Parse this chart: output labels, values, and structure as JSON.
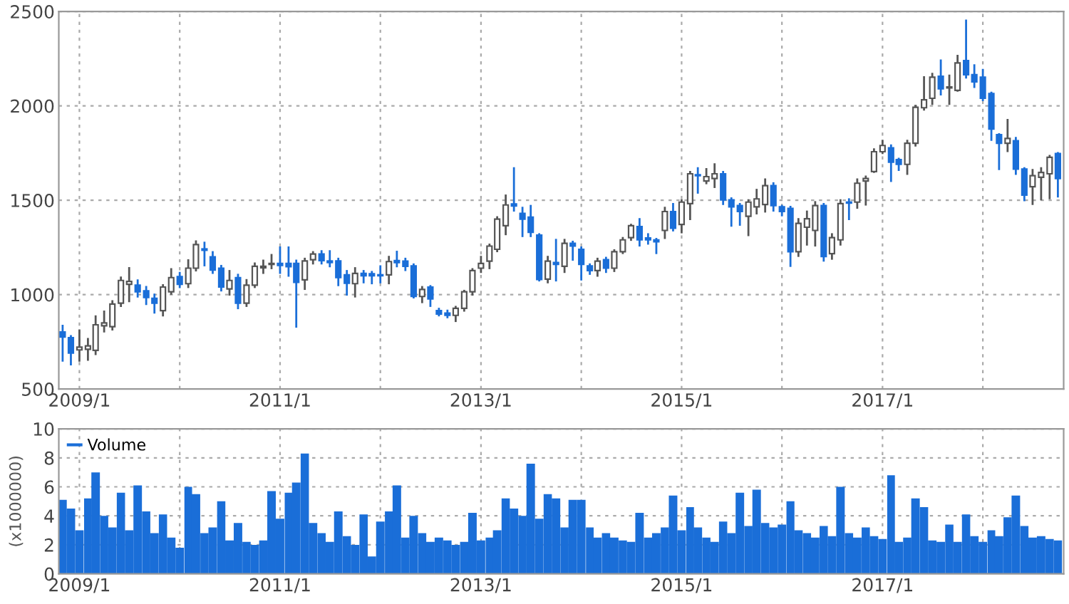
{
  "chart_data": [
    {
      "type": "candlestick",
      "grid": true,
      "colors": [
        "#1a6ed8",
        "#1a6ed8",
        "#ffffff",
        "#ffffff",
        "#ffffff",
        "#ffffff",
        "#ffffff",
        "#ffffff",
        "#ffffff",
        "#1a6ed8",
        "#1a6ed8",
        "#1a6ed8",
        "#ffffff",
        "#ffffff",
        "#1a6ed8",
        "#ffffff",
        "#ffffff",
        "#1a6ed8",
        "#1a6ed8",
        "#1a6ed8",
        "#ffffff",
        "#1a6ed8",
        "#ffffff",
        "#ffffff",
        "#ffffff",
        "#ffffff",
        "#1a6ed8",
        "#1a6ed8",
        "#1a6ed8",
        "#ffffff",
        "#ffffff",
        "#1a6ed8",
        "#1a6ed8",
        "#1a6ed8",
        "#1a6ed8",
        "#ffffff",
        "#1a6ed8",
        "#1a6ed8",
        "#1a6ed8",
        "#ffffff",
        "#1a6ed8",
        "#1a6ed8",
        "#1a6ed8",
        "#ffffff",
        "#1a6ed8",
        "#1a6ed8",
        "#1a6ed8",
        "#ffffff",
        "#ffffff",
        "#ffffff",
        "#ffffff",
        "#ffffff",
        "#ffffff",
        "#ffffff",
        "#1a6ed8",
        "#1a6ed8",
        "#1a6ed8",
        "#1a6ed8",
        "#ffffff",
        "#1a6ed8",
        "#ffffff",
        "#1a6ed8",
        "#1a6ed8",
        "#1a6ed8",
        "#ffffff",
        "#1a6ed8",
        "#ffffff",
        "#ffffff",
        "#ffffff",
        "#1a6ed8",
        "#1a6ed8",
        "#1a6ed8",
        "#ffffff",
        "#1a6ed8",
        "#ffffff",
        "#ffffff",
        "#1a6ed8",
        "#ffffff",
        "#ffffff",
        "#1a6ed8",
        "#1a6ed8",
        "#1a6ed8",
        "#ffffff",
        "#ffffff",
        "#ffffff",
        "#1a6ed8",
        "#1a6ed8",
        "#1a6ed8",
        "#ffffff",
        "#ffffff",
        "#ffffff",
        "#1a6ed8",
        "#ffffff",
        "#ffffff",
        "#1a6ed8",
        "#ffffff",
        "#ffffff",
        "#ffffff",
        "#ffffff",
        "#1a6ed8",
        "#1a6ed8",
        "#ffffff",
        "#ffffff",
        "#ffffff",
        "#ffffff",
        "#1a6ed8",
        "#ffffff",
        "#ffffff",
        "#1a6ed8",
        "#1a6ed8",
        "#1a6ed8",
        "#1a6ed8",
        "#1a6ed8",
        "#ffffff",
        "#1a6ed8",
        "#1a6ed8",
        "#ffffff",
        "#ffffff",
        "#ffffff",
        "#1a6ed8"
      ],
      "xlim": [
        "2008-10-18",
        "2018-10-22"
      ],
      "xticks": [
        {
          "value": "2009-01",
          "label": "2009/1"
        },
        {
          "value": "2010-01",
          "label": null
        },
        {
          "value": "2011-01",
          "label": "2011/1"
        },
        {
          "value": "2012-01",
          "label": null
        },
        {
          "value": "2013-01",
          "label": "2013/1"
        },
        {
          "value": "2014-01",
          "label": null
        },
        {
          "value": "2015-01",
          "label": "2015/1"
        },
        {
          "value": "2016-01",
          "label": null
        },
        {
          "value": "2017-01",
          "label": "2017/1"
        },
        {
          "value": "2018-01",
          "label": null
        }
      ],
      "ylim": [
        500,
        2500
      ],
      "yticks": [
        500,
        1000,
        1500,
        2000,
        2500
      ],
      "x": [
        "2008-11",
        "2008-12",
        "2009-01",
        "2009-02",
        "2009-03",
        "2009-04",
        "2009-05",
        "2009-06",
        "2009-07",
        "2009-08",
        "2009-09",
        "2009-10",
        "2009-11",
        "2009-12",
        "2010-01",
        "2010-02",
        "2010-03",
        "2010-04",
        "2010-05",
        "2010-06",
        "2010-07",
        "2010-08",
        "2010-09",
        "2010-10",
        "2010-11",
        "2010-12",
        "2011-01",
        "2011-02",
        "2011-03",
        "2011-04",
        "2011-05",
        "2011-06",
        "2011-07",
        "2011-08",
        "2011-09",
        "2011-10",
        "2011-11",
        "2011-12",
        "2012-01",
        "2012-02",
        "2012-03",
        "2012-04",
        "2012-05",
        "2012-06",
        "2012-07",
        "2012-08",
        "2012-09",
        "2012-10",
        "2012-11",
        "2012-12",
        "2013-01",
        "2013-02",
        "2013-03",
        "2013-04",
        "2013-05",
        "2013-06",
        "2013-07",
        "2013-08",
        "2013-09",
        "2013-10",
        "2013-11",
        "2013-12",
        "2014-01",
        "2014-02",
        "2014-03",
        "2014-04",
        "2014-05",
        "2014-06",
        "2014-07",
        "2014-08",
        "2014-09",
        "2014-10",
        "2014-11",
        "2014-12",
        "2015-01",
        "2015-02",
        "2015-03",
        "2015-04",
        "2015-05",
        "2015-06",
        "2015-07",
        "2015-08",
        "2015-09",
        "2015-10",
        "2015-11",
        "2015-12",
        "2016-01",
        "2016-02",
        "2016-03",
        "2016-04",
        "2016-05",
        "2016-06",
        "2016-07",
        "2016-08",
        "2016-09",
        "2016-10",
        "2016-11",
        "2016-12",
        "2017-01",
        "2017-02",
        "2017-03",
        "2017-04",
        "2017-05",
        "2017-06",
        "2017-07",
        "2017-08",
        "2017-09",
        "2017-10",
        "2017-11",
        "2017-12",
        "2018-01",
        "2018-02",
        "2018-03",
        "2018-04",
        "2018-05",
        "2018-06",
        "2018-07",
        "2018-08",
        "2018-09",
        "2018-10"
      ],
      "ohlc": [
        [
          802,
          835,
          650,
          775
        ],
        [
          772,
          780,
          630,
          690
        ],
        [
          707,
          810,
          650,
          722
        ],
        [
          710,
          765,
          655,
          728
        ],
        [
          705,
          885,
          685,
          840
        ],
        [
          835,
          910,
          805,
          850
        ],
        [
          830,
          965,
          815,
          950
        ],
        [
          955,
          1090,
          940,
          1075
        ],
        [
          1055,
          1140,
          965,
          1070
        ],
        [
          1050,
          1075,
          990,
          1015
        ],
        [
          1020,
          1040,
          950,
          985
        ],
        [
          980,
          1000,
          905,
          955
        ],
        [
          915,
          1050,
          890,
          1040
        ],
        [
          1015,
          1135,
          1005,
          1090
        ],
        [
          1095,
          1115,
          1040,
          1055
        ],
        [
          1058,
          1182,
          1040,
          1140
        ],
        [
          1140,
          1282,
          1128,
          1265
        ],
        [
          1242,
          1275,
          1155,
          1235
        ],
        [
          1200,
          1225,
          1115,
          1130
        ],
        [
          1140,
          1152,
          1022,
          1040
        ],
        [
          1030,
          1125,
          1000,
          1075
        ],
        [
          1090,
          1105,
          928,
          955
        ],
        [
          955,
          1077,
          940,
          1050
        ],
        [
          1050,
          1165,
          1040,
          1150
        ],
        [
          1142,
          1180,
          1115,
          1150
        ],
        [
          1160,
          1210,
          1140,
          1165
        ],
        [
          1165,
          1250,
          1115,
          1155
        ],
        [
          1165,
          1250,
          1100,
          1148
        ],
        [
          1165,
          1180,
          830,
          1065
        ],
        [
          1078,
          1190,
          1030,
          1178
        ],
        [
          1185,
          1225,
          1165,
          1215
        ],
        [
          1215,
          1230,
          1165,
          1180
        ],
        [
          1178,
          1230,
          1150,
          1170
        ],
        [
          1178,
          1190,
          1050,
          1090
        ],
        [
          1105,
          1125,
          1000,
          1060
        ],
        [
          1058,
          1140,
          990,
          1112
        ],
        [
          1112,
          1125,
          1065,
          1100
        ],
        [
          1110,
          1120,
          1060,
          1100
        ],
        [
          1105,
          1150,
          1065,
          1100
        ],
        [
          1105,
          1200,
          1060,
          1175
        ],
        [
          1180,
          1227,
          1150,
          1170
        ],
        [
          1177,
          1190,
          1130,
          1150
        ],
        [
          1152,
          1160,
          985,
          990
        ],
        [
          990,
          1040,
          960,
          1027
        ],
        [
          1040,
          1045,
          940,
          977
        ],
        [
          915,
          925,
          890,
          897
        ],
        [
          902,
          915,
          880,
          890
        ],
        [
          890,
          935,
          860,
          927
        ],
        [
          927,
          1020,
          915,
          1015
        ],
        [
          1015,
          1135,
          1000,
          1127
        ],
        [
          1140,
          1200,
          1120,
          1165
        ],
        [
          1177,
          1265,
          1140,
          1257
        ],
        [
          1240,
          1410,
          1230,
          1400
        ],
        [
          1365,
          1525,
          1320,
          1475
        ],
        [
          1480,
          1670,
          1445,
          1470
        ],
        [
          1430,
          1460,
          1310,
          1400
        ],
        [
          1410,
          1470,
          1310,
          1330
        ],
        [
          1315,
          1320,
          1075,
          1080
        ],
        [
          1082,
          1200,
          1065,
          1177
        ],
        [
          1170,
          1290,
          1075,
          1160
        ],
        [
          1150,
          1290,
          1120,
          1272
        ],
        [
          1272,
          1280,
          1185,
          1257
        ],
        [
          1240,
          1250,
          1080,
          1160
        ],
        [
          1152,
          1160,
          1110,
          1127
        ],
        [
          1127,
          1190,
          1100,
          1177
        ],
        [
          1185,
          1195,
          1120,
          1140
        ],
        [
          1140,
          1235,
          1125,
          1227
        ],
        [
          1227,
          1300,
          1220,
          1290
        ],
        [
          1302,
          1370,
          1290,
          1365
        ],
        [
          1360,
          1400,
          1260,
          1290
        ],
        [
          1300,
          1320,
          1270,
          1290
        ],
        [
          1290,
          1295,
          1220,
          1280
        ],
        [
          1340,
          1460,
          1300,
          1440
        ],
        [
          1440,
          1480,
          1340,
          1352
        ],
        [
          1372,
          1500,
          1330,
          1490
        ],
        [
          1482,
          1650,
          1400,
          1640
        ],
        [
          1635,
          1670,
          1540,
          1630
        ],
        [
          1602,
          1665,
          1590,
          1625
        ],
        [
          1615,
          1690,
          1570,
          1640
        ],
        [
          1640,
          1650,
          1480,
          1502
        ],
        [
          1502,
          1510,
          1365,
          1465
        ],
        [
          1472,
          1480,
          1370,
          1440
        ],
        [
          1415,
          1500,
          1315,
          1490
        ],
        [
          1465,
          1555,
          1430,
          1507
        ],
        [
          1477,
          1610,
          1440,
          1577
        ],
        [
          1577,
          1590,
          1445,
          1472
        ],
        [
          1465,
          1470,
          1420,
          1440
        ],
        [
          1457,
          1465,
          1152,
          1227
        ],
        [
          1227,
          1400,
          1205,
          1377
        ],
        [
          1357,
          1440,
          1265,
          1402
        ],
        [
          1340,
          1490,
          1260,
          1472
        ],
        [
          1472,
          1480,
          1180,
          1202
        ],
        [
          1217,
          1320,
          1190,
          1302
        ],
        [
          1290,
          1500,
          1265,
          1482
        ],
        [
          1490,
          1505,
          1400,
          1485
        ],
        [
          1490,
          1610,
          1460,
          1590
        ],
        [
          1602,
          1625,
          1477,
          1615
        ],
        [
          1652,
          1770,
          1650,
          1757
        ],
        [
          1757,
          1815,
          1750,
          1790
        ],
        [
          1777,
          1790,
          1602,
          1702
        ],
        [
          1715,
          1720,
          1660,
          1690
        ],
        [
          1690,
          1815,
          1640,
          1802
        ],
        [
          1802,
          2000,
          1790,
          1992
        ],
        [
          1990,
          2152,
          1980,
          2032
        ],
        [
          2040,
          2170,
          2010,
          2152
        ],
        [
          2157,
          2240,
          2060,
          2090
        ],
        [
          2095,
          2160,
          2010,
          2100
        ],
        [
          2082,
          2265,
          2080,
          2227
        ],
        [
          2240,
          2452,
          2150,
          2165
        ],
        [
          2165,
          2215,
          2100,
          2127
        ],
        [
          2152,
          2190,
          2030,
          2040
        ],
        [
          2065,
          2070,
          1820,
          1877
        ],
        [
          1847,
          1850,
          1665,
          1802
        ],
        [
          1802,
          1925,
          1760,
          1827
        ],
        [
          1815,
          1830,
          1640,
          1665
        ],
        [
          1665,
          1670,
          1500,
          1527
        ],
        [
          1572,
          1660,
          1480,
          1630
        ],
        [
          1622,
          1670,
          1505,
          1647
        ],
        [
          1640,
          1735,
          1510,
          1727
        ],
        [
          1747,
          1750,
          1520,
          1615
        ]
      ]
    },
    {
      "type": "bar",
      "grid": true,
      "legend": "top left",
      "ylabel": "(x1000000)",
      "xlim": [
        "2008-10-18",
        "2018-10-22"
      ],
      "xticks": [
        {
          "value": "2009-01",
          "label": "2009/1"
        },
        {
          "value": "2010-01",
          "label": null
        },
        {
          "value": "2011-01",
          "label": "2011/1"
        },
        {
          "value": "2012-01",
          "label": null
        },
        {
          "value": "2013-01",
          "label": "2013/1"
        },
        {
          "value": "2014-01",
          "label": null
        },
        {
          "value": "2015-01",
          "label": "2015/1"
        },
        {
          "value": "2016-01",
          "label": null
        },
        {
          "value": "2017-01",
          "label": "2017/1"
        },
        {
          "value": "2018-01",
          "label": null
        }
      ],
      "ylim": [
        0,
        10
      ],
      "yticks": [
        0,
        2,
        4,
        6,
        8,
        10
      ],
      "x": [
        "2008-11",
        "2008-12",
        "2009-01",
        "2009-02",
        "2009-03",
        "2009-04",
        "2009-05",
        "2009-06",
        "2009-07",
        "2009-08",
        "2009-09",
        "2009-10",
        "2009-11",
        "2009-12",
        "2010-01",
        "2010-02",
        "2010-03",
        "2010-04",
        "2010-05",
        "2010-06",
        "2010-07",
        "2010-08",
        "2010-09",
        "2010-10",
        "2010-11",
        "2010-12",
        "2011-01",
        "2011-02",
        "2011-03",
        "2011-04",
        "2011-05",
        "2011-06",
        "2011-07",
        "2011-08",
        "2011-09",
        "2011-10",
        "2011-11",
        "2011-12",
        "2012-01",
        "2012-02",
        "2012-03",
        "2012-04",
        "2012-05",
        "2012-06",
        "2012-07",
        "2012-08",
        "2012-09",
        "2012-10",
        "2012-11",
        "2012-12",
        "2013-01",
        "2013-02",
        "2013-03",
        "2013-04",
        "2013-05",
        "2013-06",
        "2013-07",
        "2013-08",
        "2013-09",
        "2013-10",
        "2013-11",
        "2013-12",
        "2014-01",
        "2014-02",
        "2014-03",
        "2014-04",
        "2014-05",
        "2014-06",
        "2014-07",
        "2014-08",
        "2014-09",
        "2014-10",
        "2014-11",
        "2014-12",
        "2015-01",
        "2015-02",
        "2015-03",
        "2015-04",
        "2015-05",
        "2015-06",
        "2015-07",
        "2015-08",
        "2015-09",
        "2015-10",
        "2015-11",
        "2015-12",
        "2016-01",
        "2016-02",
        "2016-03",
        "2016-04",
        "2016-05",
        "2016-06",
        "2016-07",
        "2016-08",
        "2016-09",
        "2016-10",
        "2016-11",
        "2016-12",
        "2017-01",
        "2017-02",
        "2017-03",
        "2017-04",
        "2017-05",
        "2017-06",
        "2017-07",
        "2017-08",
        "2017-09",
        "2017-10",
        "2017-11",
        "2017-12",
        "2018-01",
        "2018-02",
        "2018-03",
        "2018-04",
        "2018-05",
        "2018-06",
        "2018-07",
        "2018-08",
        "2018-09",
        "2018-10"
      ],
      "series": [
        {
          "name": "Volume",
          "color": "#1a6ed8",
          "values": [
            5.1,
            4.5,
            3.0,
            5.2,
            7.0,
            4.0,
            3.2,
            5.6,
            3.0,
            6.1,
            4.3,
            2.8,
            4.1,
            2.5,
            1.8,
            6.0,
            5.5,
            2.8,
            3.2,
            5.0,
            2.3,
            3.5,
            2.2,
            2.0,
            2.3,
            5.7,
            3.8,
            5.6,
            6.3,
            8.3,
            3.5,
            2.8,
            2.2,
            4.3,
            2.6,
            2.0,
            4.1,
            1.2,
            3.6,
            4.3,
            6.1,
            2.5,
            4.0,
            2.8,
            2.2,
            2.5,
            2.3,
            2.0,
            2.2,
            4.2,
            2.3,
            2.5,
            3.0,
            5.2,
            4.5,
            4.0,
            7.6,
            3.8,
            5.5,
            5.2,
            3.2,
            5.1,
            5.1,
            3.2,
            2.5,
            2.8,
            2.5,
            2.3,
            2.2,
            4.2,
            2.5,
            2.8,
            3.2,
            5.4,
            3.0,
            4.6,
            3.2,
            2.5,
            2.2,
            3.6,
            2.8,
            5.6,
            3.3,
            5.8,
            3.5,
            3.2,
            3.4,
            5.0,
            3.0,
            2.8,
            2.5,
            3.3,
            2.6,
            6.0,
            2.8,
            2.5,
            3.2,
            2.6,
            2.4,
            6.8,
            2.2,
            2.5,
            5.2,
            4.6,
            2.3,
            2.2,
            3.4,
            2.2,
            4.1,
            2.6,
            2.2,
            3.0,
            2.6,
            3.9,
            5.4,
            3.3,
            2.5,
            2.6,
            2.4,
            2.3
          ]
        }
      ]
    }
  ]
}
